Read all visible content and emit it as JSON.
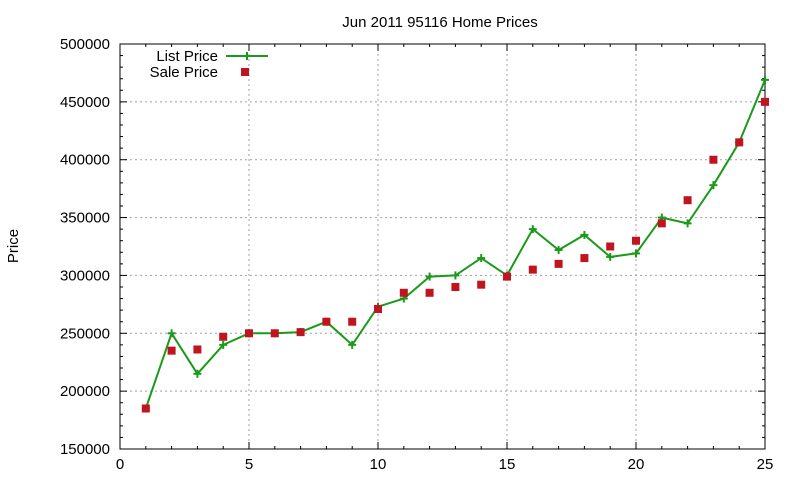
{
  "chart_data": {
    "type": "line",
    "title": "Jun 2011 95116 Home Prices",
    "xlabel": "",
    "ylabel": "Price",
    "xlim": [
      0,
      25
    ],
    "ylim": [
      150000,
      500000
    ],
    "x_ticks": [
      0,
      5,
      10,
      15,
      20,
      25
    ],
    "y_ticks": [
      150000,
      200000,
      250000,
      300000,
      350000,
      400000,
      450000,
      500000
    ],
    "grid": true,
    "legend_position": "top-left",
    "series": [
      {
        "name": "List Price",
        "style": "line-with-plus-markers",
        "color": "#1a9a1a",
        "x": [
          1,
          2,
          3,
          4,
          5,
          6,
          7,
          8,
          9,
          10,
          11,
          12,
          13,
          14,
          15,
          16,
          17,
          18,
          19,
          20,
          21,
          22,
          23,
          24,
          25
        ],
        "values": [
          185000,
          250000,
          215000,
          240000,
          250000,
          250000,
          251000,
          260000,
          240000,
          273000,
          280000,
          299000,
          300000,
          315000,
          300000,
          340000,
          322000,
          335000,
          316000,
          319000,
          350000,
          345000,
          378000,
          415000,
          469000
        ]
      },
      {
        "name": "Sale Price",
        "style": "square-markers",
        "color": "#c0141e",
        "x": [
          1,
          2,
          3,
          4,
          5,
          6,
          7,
          8,
          9,
          10,
          11,
          12,
          13,
          14,
          15,
          16,
          17,
          18,
          19,
          20,
          21,
          22,
          23,
          24,
          25
        ],
        "values": [
          185000,
          235000,
          236000,
          247000,
          250000,
          250000,
          251000,
          260000,
          260000,
          271000,
          285000,
          285000,
          290000,
          292000,
          299000,
          305000,
          310000,
          315000,
          325000,
          330000,
          345000,
          365000,
          400000,
          415000,
          450000
        ]
      }
    ]
  }
}
